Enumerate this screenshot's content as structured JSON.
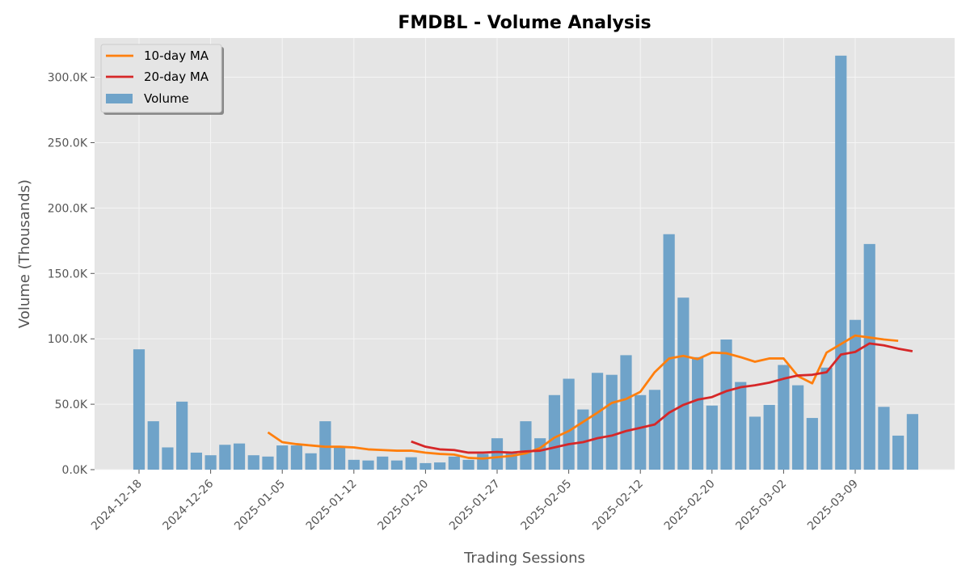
{
  "chart_data": {
    "type": "bar",
    "title": "FMDBL - Volume Analysis",
    "xlabel": "Trading Sessions",
    "ylabel": "Volume (Thousands)",
    "ylim": [
      0,
      330000
    ],
    "grid": true,
    "legend_position": "top-left",
    "colors": {
      "volume": "#6fa3c9",
      "ma10": "#ff7f0e",
      "ma20": "#d62728",
      "plot_bg": "#e5e5e5",
      "grid": "#f5f5f5"
    },
    "y_ticks": [
      {
        "value": 0,
        "label": "0.0K"
      },
      {
        "value": 50000,
        "label": "50.0K"
      },
      {
        "value": 100000,
        "label": "100.0K"
      },
      {
        "value": 150000,
        "label": "150.0K"
      },
      {
        "value": 200000,
        "label": "200.0K"
      },
      {
        "value": 250000,
        "label": "250.0K"
      },
      {
        "value": 300000,
        "label": "300.0K"
      }
    ],
    "x_ticks": [
      {
        "index": 0,
        "label": "2024-12-18"
      },
      {
        "index": 5,
        "label": "2024-12-26"
      },
      {
        "index": 10,
        "label": "2025-01-05"
      },
      {
        "index": 15,
        "label": "2025-01-12"
      },
      {
        "index": 20,
        "label": "2025-01-20"
      },
      {
        "index": 25,
        "label": "2025-01-27"
      },
      {
        "index": 30,
        "label": "2025-02-05"
      },
      {
        "index": 35,
        "label": "2025-02-12"
      },
      {
        "index": 40,
        "label": "2025-02-20"
      },
      {
        "index": 45,
        "label": "2025-03-02"
      },
      {
        "index": 50,
        "label": "2025-03-09"
      }
    ],
    "series": [
      {
        "name": "Volume",
        "kind": "bar",
        "values": [
          92000,
          37000,
          17000,
          52000,
          13000,
          11000,
          19000,
          20000,
          11000,
          10000,
          18500,
          18500,
          12500,
          37000,
          17000,
          7500,
          7000,
          10000,
          7000,
          9500,
          5000,
          5500,
          10000,
          7500,
          12000,
          24000,
          13500,
          37000,
          24000,
          57000,
          69500,
          46000,
          74000,
          72500,
          87500,
          57000,
          61000,
          180000,
          131500,
          86000,
          49000,
          99500,
          67000,
          40500,
          49500,
          80000,
          64500,
          39500,
          78000,
          316500,
          114500,
          172500,
          48000,
          26000,
          42500
        ]
      },
      {
        "name": "10-day MA",
        "kind": "line",
        "start_index": 9,
        "values": [
          28500,
          21000,
          19500,
          18500,
          17500,
          17500,
          17000,
          15500,
          15000,
          14500,
          14500,
          13000,
          12000,
          11500,
          9000,
          8500,
          9500,
          10500,
          12500,
          16500,
          24500,
          29500,
          36500,
          43500,
          51000,
          54000,
          59500,
          74500,
          85000,
          87000,
          84500,
          89500,
          89000,
          86000,
          82500,
          85000,
          85000,
          71500,
          66000,
          89500,
          96000,
          102500,
          101000,
          99500,
          98500
        ]
      },
      {
        "name": "20-day MA",
        "kind": "line",
        "start_index": 19,
        "values": [
          21500,
          17500,
          15500,
          15000,
          13000,
          13000,
          13500,
          13000,
          14000,
          14500,
          17000,
          19500,
          21000,
          24000,
          26000,
          29500,
          32000,
          34500,
          43500,
          49500,
          53500,
          55500,
          60000,
          63000,
          64500,
          66500,
          69500,
          72000,
          72500,
          74500,
          88000,
          90000,
          96500,
          95000,
          92500,
          90500
        ]
      }
    ]
  }
}
